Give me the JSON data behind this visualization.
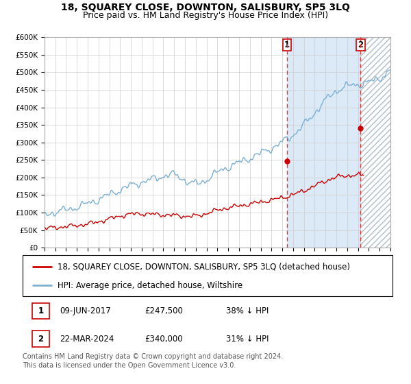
{
  "title": "18, SQUAREY CLOSE, DOWNTON, SALISBURY, SP5 3LQ",
  "subtitle": "Price paid vs. HM Land Registry's House Price Index (HPI)",
  "ylim": [
    0,
    600000
  ],
  "yticks": [
    0,
    50000,
    100000,
    150000,
    200000,
    250000,
    300000,
    350000,
    400000,
    450000,
    500000,
    550000,
    600000
  ],
  "ytick_labels": [
    "£0",
    "£50K",
    "£100K",
    "£150K",
    "£200K",
    "£250K",
    "£300K",
    "£350K",
    "£400K",
    "£450K",
    "£500K",
    "£550K",
    "£600K"
  ],
  "hpi_color": "#7bafd4",
  "price_color": "#cc0000",
  "marker_color": "#cc0000",
  "dashed_line_color": "#ee3333",
  "region_bg_color": "#dce9f7",
  "hatch_color": "#b0bcc8",
  "legend_label_price": "18, SQUAREY CLOSE, DOWNTON, SALISBURY, SP5 3LQ (detached house)",
  "legend_label_hpi": "HPI: Average price, detached house, Wiltshire",
  "sale1_date": "09-JUN-2017",
  "sale1_price": "£247,500",
  "sale1_pct": "38% ↓ HPI",
  "sale1_year": 2017.44,
  "sale1_value": 247500,
  "sale2_date": "22-MAR-2024",
  "sale2_price": "£340,000",
  "sale2_pct": "31% ↓ HPI",
  "sale2_year": 2024.22,
  "sale2_value": 340000,
  "footer": "Contains HM Land Registry data © Crown copyright and database right 2024.\nThis data is licensed under the Open Government Licence v3.0.",
  "title_fontsize": 10,
  "subtitle_fontsize": 9,
  "tick_fontsize": 7.5,
  "legend_fontsize": 8.5,
  "footer_fontsize": 7
}
